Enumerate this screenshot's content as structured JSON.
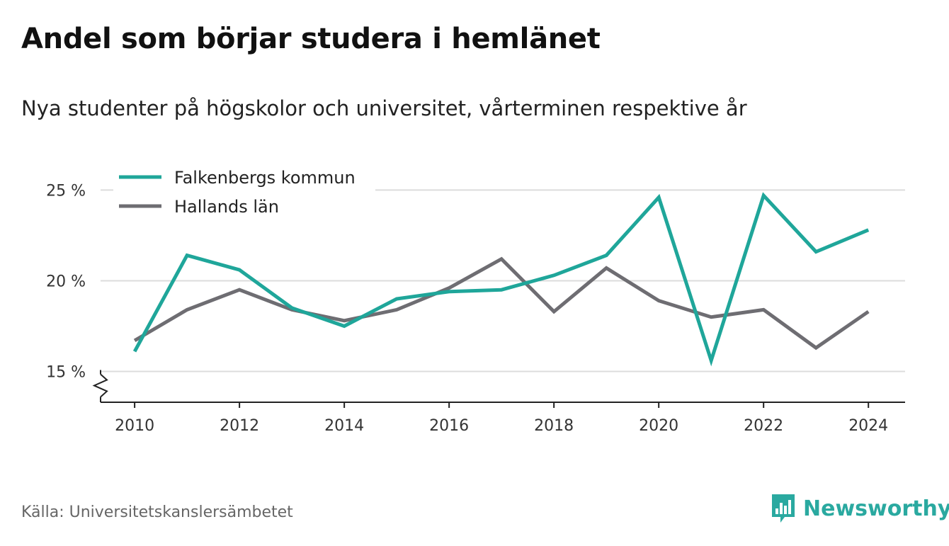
{
  "title": "Andel som börjar studera i hemlänet",
  "subtitle": "Nya studenter på högskolor och universitet, vårterminen respektive år",
  "source": "Källa: Universitetskanslersämbetet",
  "brand": {
    "name": "Newsworthy",
    "icon": "newsworthy-logo-icon",
    "color": "#2aa9a0"
  },
  "chart_data": {
    "type": "line",
    "x": [
      2010,
      2011,
      2012,
      2013,
      2014,
      2015,
      2016,
      2017,
      2018,
      2019,
      2020,
      2021,
      2022,
      2023,
      2024
    ],
    "series": [
      {
        "name": "Falkenbergs kommun",
        "color": "#1fa69a",
        "values": [
          16.1,
          21.4,
          20.6,
          18.5,
          17.5,
          19.0,
          19.4,
          19.5,
          20.3,
          21.4,
          24.6,
          15.6,
          24.7,
          21.6,
          22.8
        ]
      },
      {
        "name": "Hallands län",
        "color": "#6e6d72",
        "values": [
          16.7,
          18.4,
          19.5,
          18.4,
          17.8,
          18.4,
          19.6,
          21.2,
          18.3,
          20.7,
          18.9,
          18.0,
          18.4,
          16.3,
          18.3
        ]
      }
    ],
    "xticks": [
      2010,
      2012,
      2014,
      2016,
      2018,
      2020,
      2022,
      2024
    ],
    "xtick_labels": [
      "2010",
      "2012",
      "2014",
      "2016",
      "2018",
      "2020",
      "2022",
      "2024"
    ],
    "yticks": [
      15,
      20,
      25
    ],
    "ytick_labels": [
      "15 %",
      "20 %",
      "25 %"
    ],
    "ylim": [
      13.3,
      26.5
    ],
    "xlim": [
      2009.35,
      2024.7
    ],
    "grid": true,
    "axis_break": true,
    "legend_position": "top-left"
  }
}
